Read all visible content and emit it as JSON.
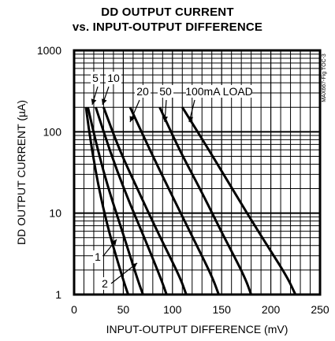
{
  "header": {
    "title_line1": "DD OUTPUT CURRENT",
    "title_line2": "vs. INPUT-OUTPUT DIFFERENCE",
    "figure_id": "MAX667-Fig TOC-3"
  },
  "chart_data": {
    "type": "line",
    "title": "DD OUTPUT CURRENT vs. INPUT-OUTPUT DIFFERENCE",
    "xlabel": "INPUT-OUTPUT DIFFERENCE (mV)",
    "ylabel": "DD OUTPUT CURRENT (µA)",
    "xlim": [
      0,
      250
    ],
    "ylim": [
      1,
      1000
    ],
    "yscale": "log",
    "grid": true,
    "x_ticks": [
      0,
      50,
      100,
      150,
      200,
      250
    ],
    "x_tick_labels": [
      "0",
      "50",
      "100",
      "150",
      "200",
      "250"
    ],
    "y_ticks": [
      1,
      10,
      100,
      1000
    ],
    "y_tick_labels": [
      "1",
      "10",
      "100",
      "1000"
    ],
    "series": [
      {
        "name": "1",
        "points": [
          [
            12,
            200
          ],
          [
            18,
            60
          ],
          [
            26,
            18
          ],
          [
            36,
            5.5
          ],
          [
            50,
            1.5
          ],
          [
            55,
            1
          ]
        ]
      },
      {
        "name": "2",
        "points": [
          [
            14,
            200
          ],
          [
            24,
            60
          ],
          [
            36,
            18
          ],
          [
            50,
            5.5
          ],
          [
            64,
            1.6
          ],
          [
            70,
            1
          ]
        ]
      },
      {
        "name": "5",
        "points": [
          [
            22,
            200
          ],
          [
            36,
            60
          ],
          [
            52,
            18
          ],
          [
            70,
            5.5
          ],
          [
            88,
            1.6
          ],
          [
            94,
            1
          ]
        ]
      },
      {
        "name": "10",
        "points": [
          [
            30,
            200
          ],
          [
            46,
            60
          ],
          [
            66,
            18
          ],
          [
            86,
            5.5
          ],
          [
            108,
            1.6
          ],
          [
            114,
            1
          ]
        ]
      },
      {
        "name": "20",
        "points": [
          [
            57,
            200
          ],
          [
            77,
            60
          ],
          [
            98,
            18
          ],
          [
            119,
            5.5
          ],
          [
            140,
            1.7
          ],
          [
            147,
            1
          ]
        ]
      },
      {
        "name": "50",
        "points": [
          [
            87,
            200
          ],
          [
            107,
            60
          ],
          [
            130,
            18
          ],
          [
            151,
            5.5
          ],
          [
            173,
            1.7
          ],
          [
            180,
            1
          ]
        ]
      },
      {
        "name": "100mA LOAD",
        "points": [
          [
            110,
            200
          ],
          [
            137,
            60
          ],
          [
            163,
            18
          ],
          [
            189,
            5.5
          ],
          [
            216,
            1.7
          ],
          [
            225,
            1
          ]
        ]
      }
    ],
    "annotations": [
      "1",
      "2",
      "5",
      "10",
      "20",
      "50",
      "100mA LOAD"
    ]
  }
}
